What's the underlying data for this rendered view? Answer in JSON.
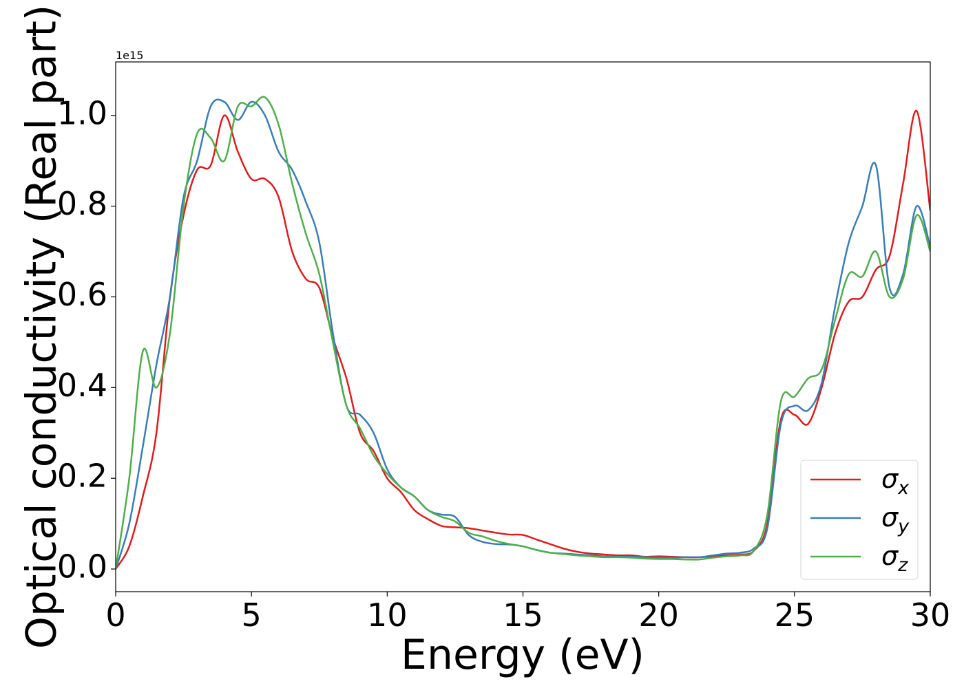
{
  "chart_data": {
    "type": "line",
    "xlabel": "Energy (eV)",
    "ylabel": "Optical conductivity (Real part)",
    "y_offset_text": "1e15",
    "x": [
      0,
      0.5,
      1,
      1.5,
      2,
      2.5,
      3,
      3.5,
      4,
      4.5,
      5,
      5.5,
      6,
      6.5,
      7,
      7.5,
      8,
      8.5,
      9,
      9.5,
      10,
      10.5,
      11,
      11.5,
      12,
      12.5,
      13,
      13.5,
      14,
      14.5,
      15,
      15.5,
      16,
      16.5,
      17,
      17.5,
      18,
      18.5,
      19,
      19.5,
      20,
      20.5,
      21,
      21.5,
      22,
      22.5,
      23,
      23.5,
      24,
      24.5,
      25,
      25.5,
      26,
      26.5,
      27,
      27.5,
      28,
      28.5,
      29,
      29.5,
      30
    ],
    "series": [
      {
        "name": "σx",
        "color": "#e41a1c",
        "values": [
          0,
          0.05,
          0.16,
          0.3,
          0.6,
          0.78,
          0.88,
          0.89,
          1.0,
          0.92,
          0.86,
          0.86,
          0.82,
          0.7,
          0.64,
          0.62,
          0.51,
          0.42,
          0.3,
          0.26,
          0.2,
          0.17,
          0.13,
          0.11,
          0.095,
          0.092,
          0.09,
          0.085,
          0.08,
          0.076,
          0.075,
          0.065,
          0.055,
          0.045,
          0.038,
          0.034,
          0.032,
          0.03,
          0.03,
          0.027,
          0.028,
          0.027,
          0.026,
          0.026,
          0.028,
          0.03,
          0.032,
          0.04,
          0.1,
          0.33,
          0.34,
          0.32,
          0.4,
          0.52,
          0.59,
          0.6,
          0.66,
          0.69,
          0.85,
          1.01,
          0.79
        ]
      },
      {
        "name": "σy",
        "color": "#377eb8",
        "values": [
          0,
          0.1,
          0.27,
          0.45,
          0.6,
          0.82,
          0.9,
          1.02,
          1.03,
          0.99,
          1.03,
          1.0,
          0.92,
          0.88,
          0.81,
          0.72,
          0.52,
          0.36,
          0.34,
          0.3,
          0.22,
          0.18,
          0.16,
          0.13,
          0.12,
          0.115,
          0.075,
          0.06,
          0.055,
          0.054,
          0.05,
          0.042,
          0.036,
          0.034,
          0.032,
          0.03,
          0.028,
          0.027,
          0.027,
          0.026,
          0.025,
          0.025,
          0.026,
          0.026,
          0.03,
          0.034,
          0.036,
          0.045,
          0.09,
          0.32,
          0.36,
          0.35,
          0.41,
          0.58,
          0.72,
          0.8,
          0.89,
          0.62,
          0.65,
          0.8,
          0.71
        ]
      },
      {
        "name": "σz",
        "color": "#4daf4a",
        "values": [
          0,
          0.2,
          0.48,
          0.4,
          0.52,
          0.8,
          0.96,
          0.95,
          0.9,
          1.02,
          1.02,
          1.04,
          0.98,
          0.85,
          0.74,
          0.65,
          0.5,
          0.36,
          0.31,
          0.25,
          0.21,
          0.18,
          0.16,
          0.13,
          0.115,
          0.105,
          0.08,
          0.072,
          0.062,
          0.055,
          0.05,
          0.042,
          0.036,
          0.033,
          0.03,
          0.028,
          0.026,
          0.026,
          0.025,
          0.023,
          0.022,
          0.022,
          0.021,
          0.021,
          0.025,
          0.028,
          0.03,
          0.04,
          0.12,
          0.37,
          0.38,
          0.42,
          0.44,
          0.55,
          0.65,
          0.645,
          0.7,
          0.6,
          0.64,
          0.78,
          0.7
        ]
      }
    ],
    "xlim": [
      0,
      30
    ],
    "xticks": [
      0,
      5,
      10,
      15,
      20,
      25,
      30
    ],
    "ylim": [
      -0.05,
      1.118
    ],
    "yticks": [
      {
        "value": 0,
        "label": "0.0"
      },
      0.2,
      0.4,
      0.6,
      0.8,
      {
        "value": 1,
        "label": "1.0"
      }
    ],
    "legend": "lower right"
  }
}
